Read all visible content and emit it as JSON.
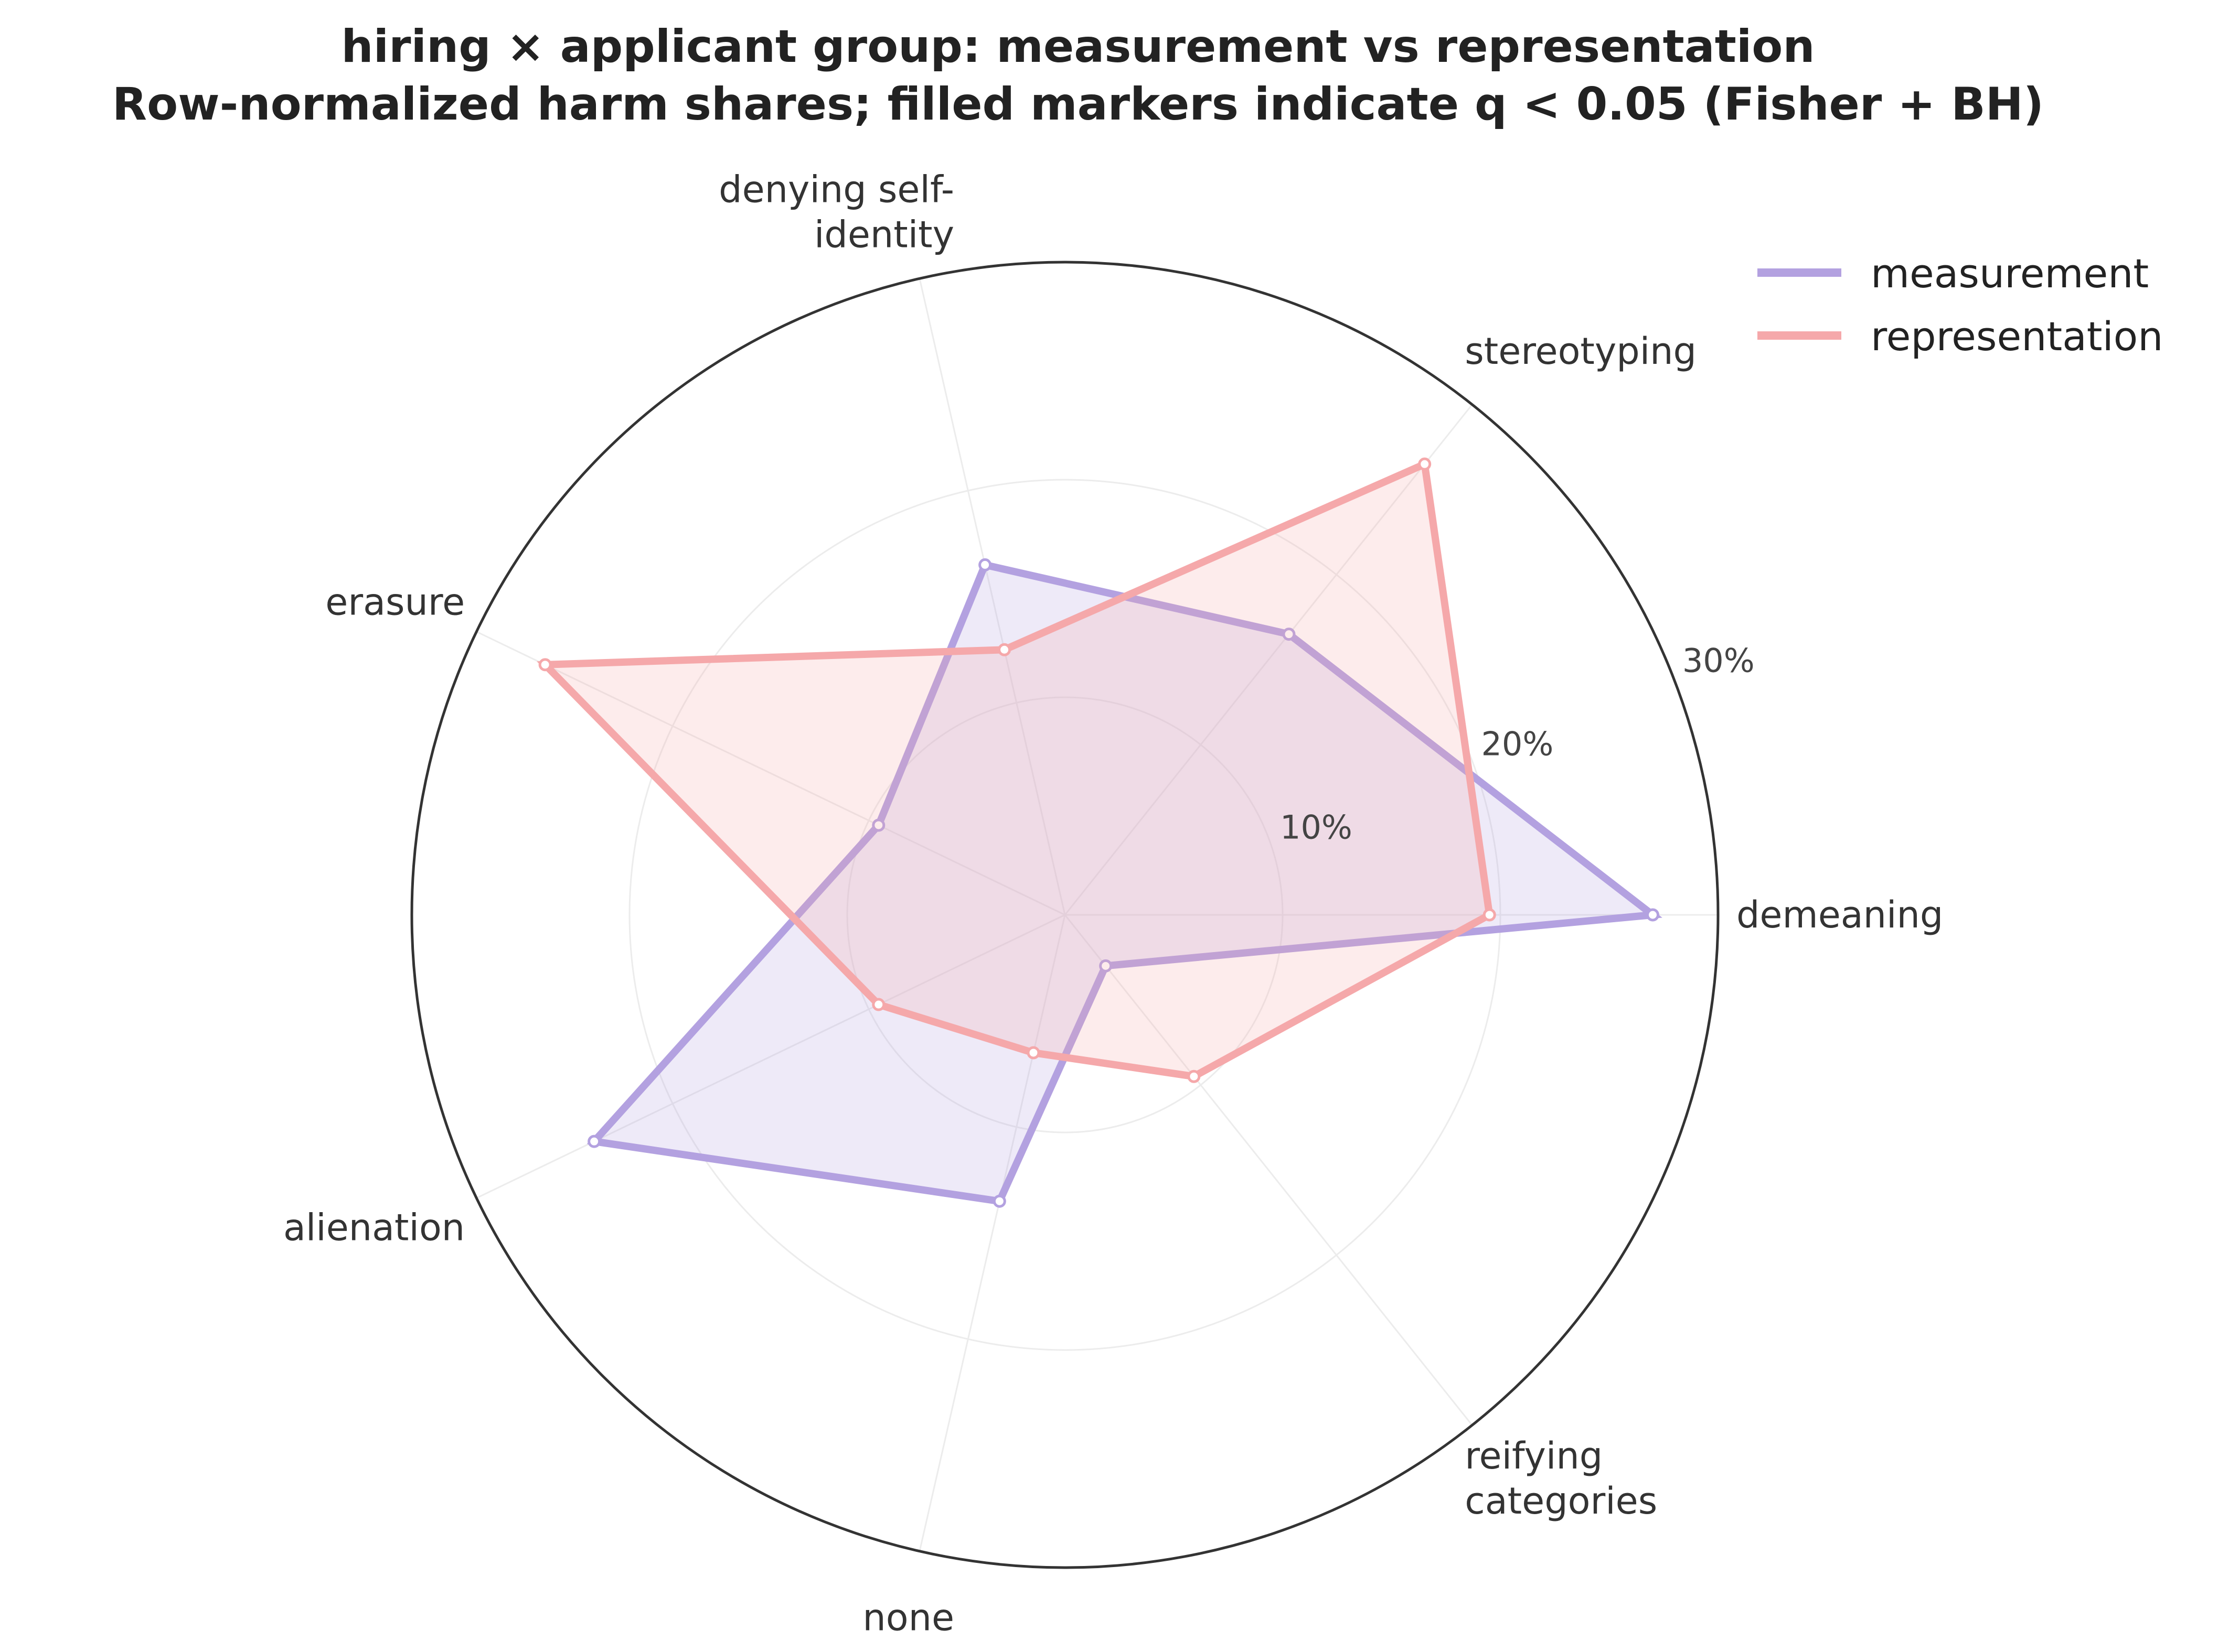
{
  "chart_data": {
    "type": "radar",
    "title": "hiring × applicant group: measurement vs representation",
    "subtitle": "Row-normalized harm shares; filled markers indicate q < 0.05 (Fisher + BH)",
    "categories": [
      [
        "demeaning"
      ],
      [
        "stereotyping"
      ],
      [
        "denying self-",
        "identity"
      ],
      [
        "erasure"
      ],
      [
        "alienation"
      ],
      [
        "none"
      ],
      [
        "reifying",
        "categories"
      ]
    ],
    "radial_ticks": [
      0.1,
      0.2,
      0.3
    ],
    "radial_tick_labels": [
      "10%",
      "20%",
      "30%"
    ],
    "rmax": 0.3,
    "series": [
      {
        "name": "measurement",
        "color": "#b3a1e0",
        "values": [
          0.27,
          0.165,
          0.165,
          0.095,
          0.24,
          0.135,
          0.03
        ]
      },
      {
        "name": "representation",
        "color": "#f5a8aa",
        "values": [
          0.195,
          0.265,
          0.125,
          0.265,
          0.095,
          0.065,
          0.095
        ]
      }
    ],
    "legend_position": "top-right",
    "grid": true
  }
}
